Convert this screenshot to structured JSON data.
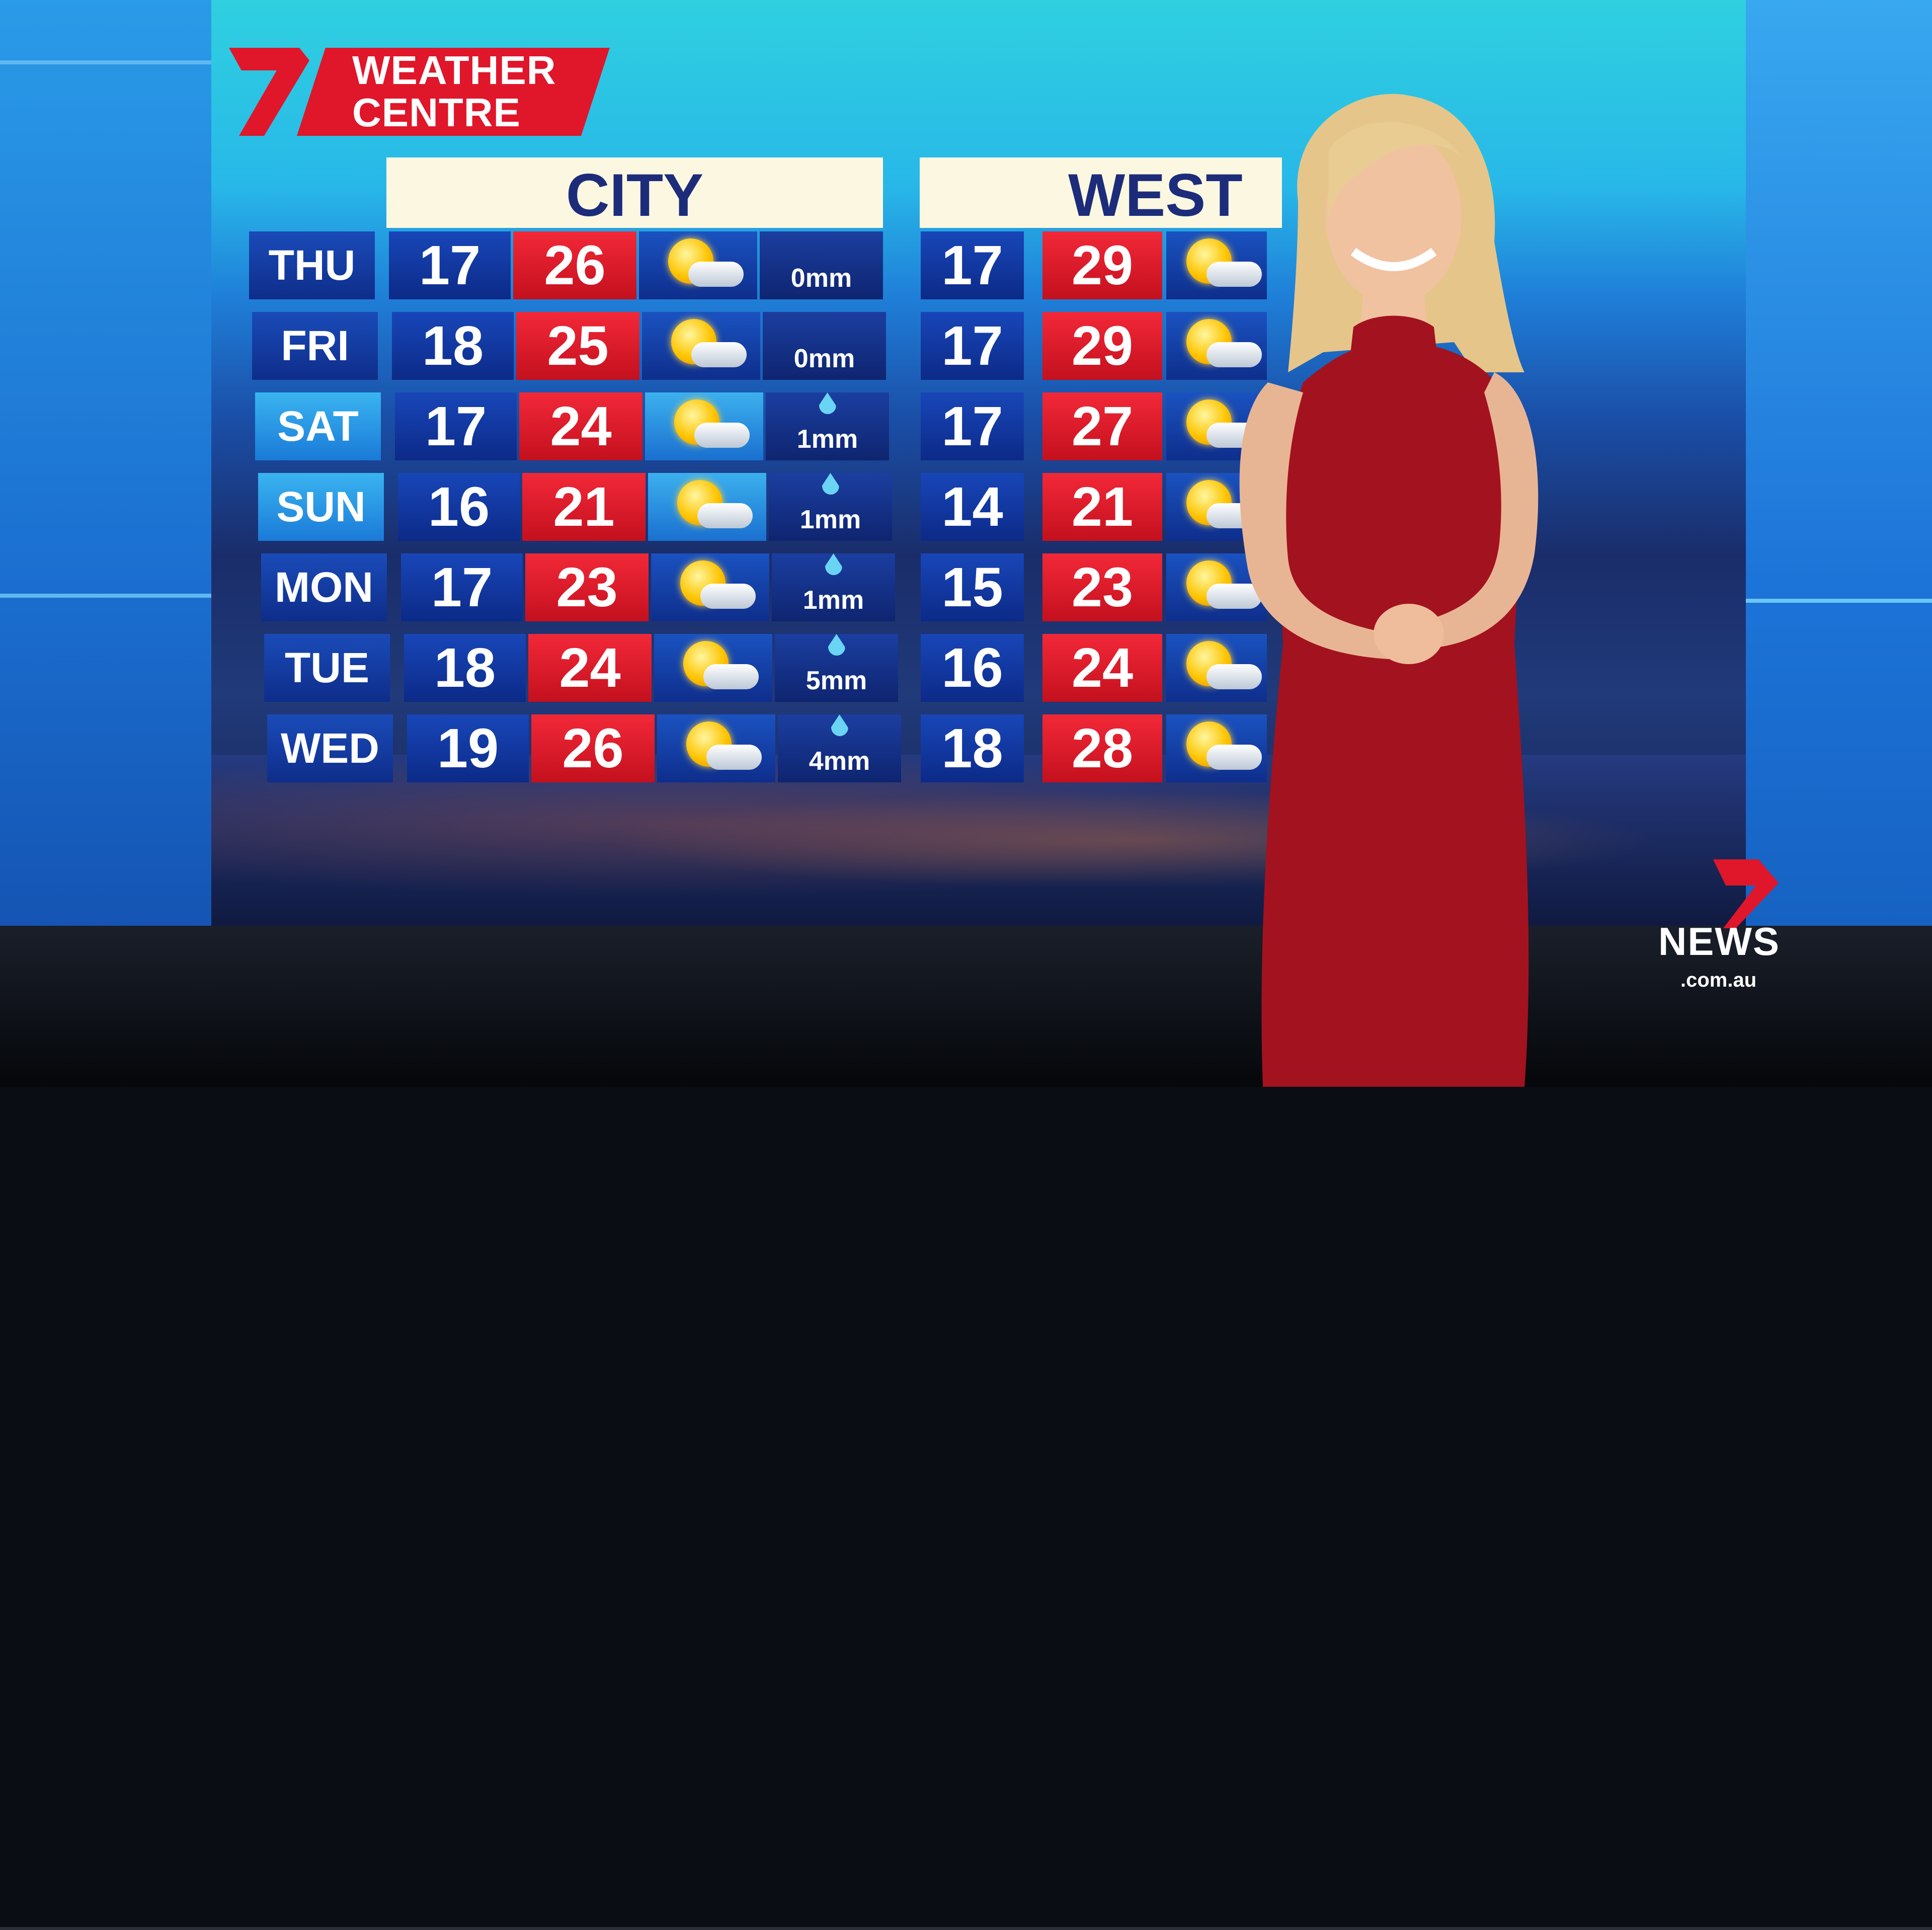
{
  "branding": {
    "logo_text_line1": "WEATHER",
    "logo_text_line2": "CENTRE",
    "network_logo": "7",
    "news_logo": "NEWS",
    "news_domain": ".com.au",
    "brand_red": "#e0162b",
    "header_navy": "#1c2c7a"
  },
  "forecast": {
    "regions": [
      "CITY",
      "WEST"
    ],
    "rows": [
      {
        "day": "THU",
        "city_min": "17",
        "city_max": "26",
        "city_icon": "sun-cloud-icon",
        "city_rain": "0mm",
        "west_min": "17",
        "west_max": "29"
      },
      {
        "day": "FRI",
        "city_min": "18",
        "city_max": "25",
        "city_icon": "sun-cloud-icon",
        "city_rain": "0mm",
        "west_min": "17",
        "west_max": "29"
      },
      {
        "day": "SAT",
        "city_min": "17",
        "city_max": "24",
        "city_icon": "sun-cloud-icon",
        "city_rain": "1mm",
        "west_min": "17",
        "west_max": "27"
      },
      {
        "day": "SUN",
        "city_min": "16",
        "city_max": "21",
        "city_icon": "sun-cloud-icon",
        "city_rain": "1mm",
        "west_min": "14",
        "west_max": "21"
      },
      {
        "day": "MON",
        "city_min": "17",
        "city_max": "23",
        "city_icon": "sun-cloud-icon",
        "city_rain": "1mm",
        "west_min": "15",
        "west_max": "23"
      },
      {
        "day": "TUE",
        "city_min": "18",
        "city_max": "24",
        "city_icon": "sun-cloud-icon",
        "city_rain": "5mm",
        "west_min": "16",
        "west_max": "24"
      },
      {
        "day": "WED",
        "city_min": "19",
        "city_max": "26",
        "city_icon": "sun-cloud-icon",
        "city_rain": "4mm",
        "west_min": "18",
        "west_max": "28"
      }
    ]
  }
}
